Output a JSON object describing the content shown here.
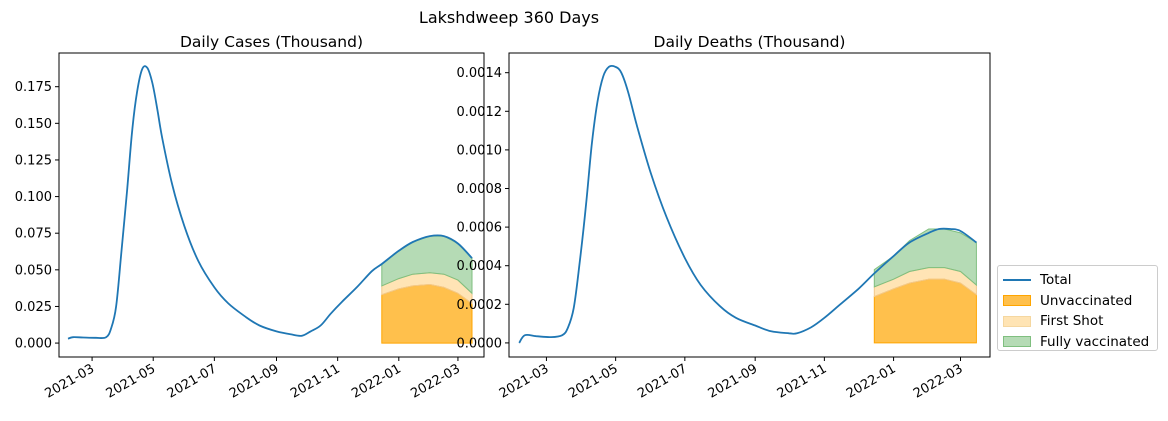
{
  "figure": {
    "suptitle": "Lakshdweep 360 Days"
  },
  "legend": {
    "entries": [
      {
        "label": "Total",
        "kind": "line",
        "color": "#1f77b4"
      },
      {
        "label": "Unvaccinated",
        "kind": "area",
        "color": "#ffa500"
      },
      {
        "label": "First Shot",
        "kind": "area",
        "color": "#ffe0a0"
      },
      {
        "label": "Fully vaccinated",
        "kind": "area",
        "color": "#8fca8f"
      }
    ]
  },
  "chart_data": [
    {
      "type": "area",
      "title": "Daily Cases (Thousand)",
      "xlabel": "",
      "ylabel": "",
      "x_ticks": [
        "2021-03",
        "2021-05",
        "2021-07",
        "2021-09",
        "2021-11",
        "2022-01",
        "2022-03"
      ],
      "y_ticks": [
        "0.000",
        "0.025",
        "0.050",
        "0.075",
        "0.100",
        "0.125",
        "0.150",
        "0.175"
      ],
      "ylim": [
        -0.0095,
        0.198
      ],
      "xlim": [
        "2021-01-27",
        "2022-03-27"
      ],
      "grid": false,
      "series": [
        {
          "name": "Total",
          "type": "line",
          "x": [
            "2021-02-05",
            "2021-02-10",
            "2021-02-20",
            "2021-03-05",
            "2021-03-15",
            "2021-03-20",
            "2021-03-25",
            "2021-03-30",
            "2021-04-05",
            "2021-04-10",
            "2021-04-15",
            "2021-04-20",
            "2021-04-25",
            "2021-04-30",
            "2021-05-05",
            "2021-05-10",
            "2021-05-20",
            "2021-06-01",
            "2021-06-15",
            "2021-07-01",
            "2021-07-15",
            "2021-08-01",
            "2021-08-15",
            "2021-09-01",
            "2021-09-15",
            "2021-09-26",
            "2021-10-05",
            "2021-10-15",
            "2021-10-25",
            "2021-11-05",
            "2021-11-20",
            "2021-12-05",
            "2021-12-15",
            "2022-01-01",
            "2022-01-15",
            "2022-02-01",
            "2022-02-15",
            "2022-03-01",
            "2022-03-15"
          ],
          "values": [
            0.003,
            0.004,
            0.0038,
            0.0036,
            0.004,
            0.01,
            0.025,
            0.06,
            0.105,
            0.145,
            0.172,
            0.187,
            0.188,
            0.178,
            0.16,
            0.14,
            0.108,
            0.08,
            0.056,
            0.038,
            0.027,
            0.018,
            0.012,
            0.008,
            0.006,
            0.005,
            0.008,
            0.012,
            0.02,
            0.028,
            0.038,
            0.049,
            0.054,
            0.063,
            0.069,
            0.073,
            0.073,
            0.068,
            0.058
          ]
        },
        {
          "name": "Unvaccinated",
          "type": "area",
          "color": "#ffa500",
          "x": [
            "2021-12-15",
            "2022-01-01",
            "2022-01-15",
            "2022-02-01",
            "2022-02-15",
            "2022-03-01",
            "2022-03-15"
          ],
          "values": [
            0.033,
            0.037,
            0.039,
            0.04,
            0.038,
            0.034,
            0.027
          ]
        },
        {
          "name": "First Shot",
          "type": "area",
          "color": "#ffe0a0",
          "x": [
            "2021-12-15",
            "2022-01-01",
            "2022-01-15",
            "2022-02-01",
            "2022-02-15",
            "2022-03-01",
            "2022-03-15"
          ],
          "values": [
            0.006,
            0.007,
            0.008,
            0.008,
            0.009,
            0.009,
            0.007
          ]
        },
        {
          "name": "Fully vaccinated",
          "type": "area",
          "color": "#8fca8f",
          "x": [
            "2021-12-15",
            "2022-01-01",
            "2022-01-15",
            "2022-02-01",
            "2022-02-15",
            "2022-03-01",
            "2022-03-15"
          ],
          "values": [
            0.015,
            0.019,
            0.022,
            0.025,
            0.026,
            0.025,
            0.024
          ]
        }
      ]
    },
    {
      "type": "area",
      "title": "Daily Deaths (Thousand)",
      "xlabel": "",
      "ylabel": "",
      "x_ticks": [
        "2021-03",
        "2021-05",
        "2021-07",
        "2021-09",
        "2021-11",
        "2022-01",
        "2022-03"
      ],
      "y_ticks": [
        "0.0000",
        "0.0002",
        "0.0004",
        "0.0006",
        "0.0008",
        "0.0010",
        "0.0012",
        "0.0014"
      ],
      "ylim": [
        -7.3e-05,
        0.001502
      ],
      "xlim": [
        "2021-01-27",
        "2022-03-27"
      ],
      "grid": false,
      "series": [
        {
          "name": "Total",
          "type": "line",
          "x": [
            "2021-02-05",
            "2021-02-10",
            "2021-02-20",
            "2021-03-05",
            "2021-03-15",
            "2021-03-20",
            "2021-03-25",
            "2021-03-30",
            "2021-04-05",
            "2021-04-10",
            "2021-04-15",
            "2021-04-20",
            "2021-04-25",
            "2021-05-01",
            "2021-05-06",
            "2021-05-12",
            "2021-05-20",
            "2021-06-01",
            "2021-06-15",
            "2021-07-01",
            "2021-07-15",
            "2021-08-01",
            "2021-08-15",
            "2021-09-01",
            "2021-09-15",
            "2021-10-01",
            "2021-10-08",
            "2021-10-20",
            "2021-11-01",
            "2021-11-15",
            "2021-12-01",
            "2021-12-15",
            "2022-01-01",
            "2022-01-15",
            "2022-02-01",
            "2022-02-10",
            "2022-02-20",
            "2022-03-01",
            "2022-03-15"
          ],
          "values": [
            0.0,
            4e-05,
            3.5e-05,
            3e-05,
            4e-05,
            8e-05,
            0.00018,
            0.0004,
            0.00072,
            0.00103,
            0.00125,
            0.00138,
            0.00143,
            0.00143,
            0.0014,
            0.0013,
            0.00112,
            0.00088,
            0.00065,
            0.00044,
            0.0003,
            0.00019,
            0.00013,
            9e-05,
            6e-05,
            5e-05,
            5e-05,
            8e-05,
            0.00013,
            0.0002,
            0.00028,
            0.00036,
            0.00045,
            0.00052,
            0.00057,
            0.00059,
            0.00059,
            0.00058,
            0.00052
          ]
        },
        {
          "name": "Unvaccinated",
          "type": "area",
          "color": "#ffa500",
          "x": [
            "2021-12-15",
            "2022-01-01",
            "2022-01-15",
            "2022-02-01",
            "2022-02-15",
            "2022-03-01",
            "2022-03-15"
          ],
          "values": [
            0.00024,
            0.00028,
            0.00031,
            0.00033,
            0.00033,
            0.00031,
            0.00025
          ]
        },
        {
          "name": "First Shot",
          "type": "area",
          "color": "#ffe0a0",
          "x": [
            "2021-12-15",
            "2022-01-01",
            "2022-01-15",
            "2022-02-01",
            "2022-02-15",
            "2022-03-01",
            "2022-03-15"
          ],
          "values": [
            5e-05,
            5e-05,
            6e-05,
            6e-05,
            6e-05,
            6e-05,
            5e-05
          ]
        },
        {
          "name": "Fully vaccinated",
          "type": "area",
          "color": "#8fca8f",
          "x": [
            "2021-12-15",
            "2022-01-01",
            "2022-01-15",
            "2022-02-01",
            "2022-02-15",
            "2022-03-01",
            "2022-03-15"
          ],
          "values": [
            9e-05,
            0.00012,
            0.00016,
            0.0002,
            0.0002,
            0.0002,
            0.00022
          ]
        }
      ]
    }
  ]
}
